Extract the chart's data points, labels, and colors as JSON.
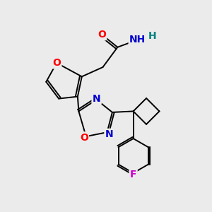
{
  "bg_color": "#ebebeb",
  "bond_color": "#000000",
  "atom_colors": {
    "O": "#ff0000",
    "N": "#0000cd",
    "F": "#cc00cc",
    "H": "#008080",
    "C": "#000000"
  },
  "font_size_atom": 10,
  "title": ""
}
